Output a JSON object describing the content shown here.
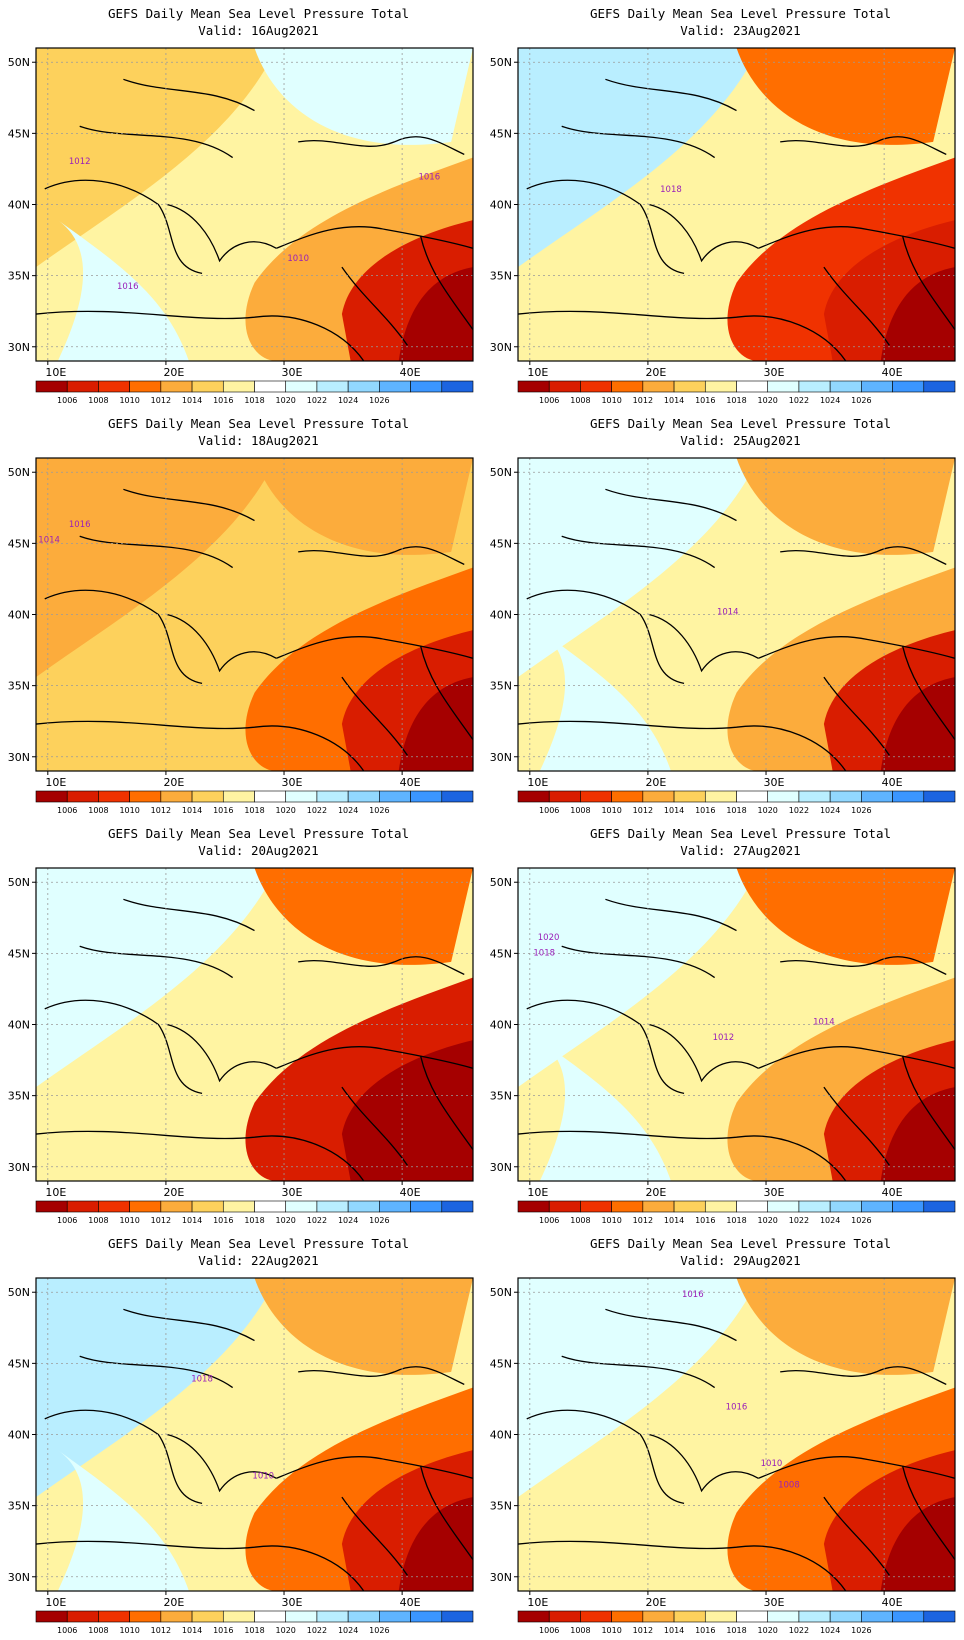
{
  "title": "GEFS Daily Mean Sea Level Pressure Total",
  "valid_prefix": "Valid:",
  "lon_labels": [
    "10E",
    "20E",
    "30E",
    "40E"
  ],
  "lat_labels": [
    "50N",
    "45N",
    "40N",
    "35N",
    "30N"
  ],
  "colorbar": {
    "colors": [
      "#a50000",
      "#d91d00",
      "#f03200",
      "#ff6e00",
      "#fcac3c",
      "#fdd15c",
      "#fff4a2",
      "#ffffff",
      "#e0ffff",
      "#b9eeff",
      "#92d8ff",
      "#5fb4ff",
      "#3b96ff",
      "#1c64e0"
    ],
    "labels": [
      "1006",
      "1008",
      "1010",
      "1012",
      "1014",
      "1016",
      "1018",
      "1020",
      "1022",
      "1024",
      "1026"
    ]
  },
  "panels": [
    {
      "date": "16Aug2021",
      "labels": [
        "1012",
        "1016",
        "1010",
        "1016"
      ]
    },
    {
      "date": "23Aug2021",
      "labels": [
        "1018"
      ]
    },
    {
      "date": "18Aug2021",
      "labels": [
        "1016",
        "1014"
      ]
    },
    {
      "date": "25Aug2021",
      "labels": [
        "1014"
      ]
    },
    {
      "date": "20Aug2021",
      "labels": []
    },
    {
      "date": "27Aug2021",
      "labels": [
        "1020",
        "1018",
        "1014",
        "1012"
      ]
    },
    {
      "date": "22Aug2021",
      "labels": [
        "1018",
        "1010"
      ]
    },
    {
      "date": "29Aug2021",
      "labels": [
        "1016",
        "1016",
        "1010",
        "1008"
      ]
    }
  ],
  "colors": {
    "contour": "#9a1fb8",
    "coast": "#000000",
    "grid": "#9a9a9a"
  }
}
